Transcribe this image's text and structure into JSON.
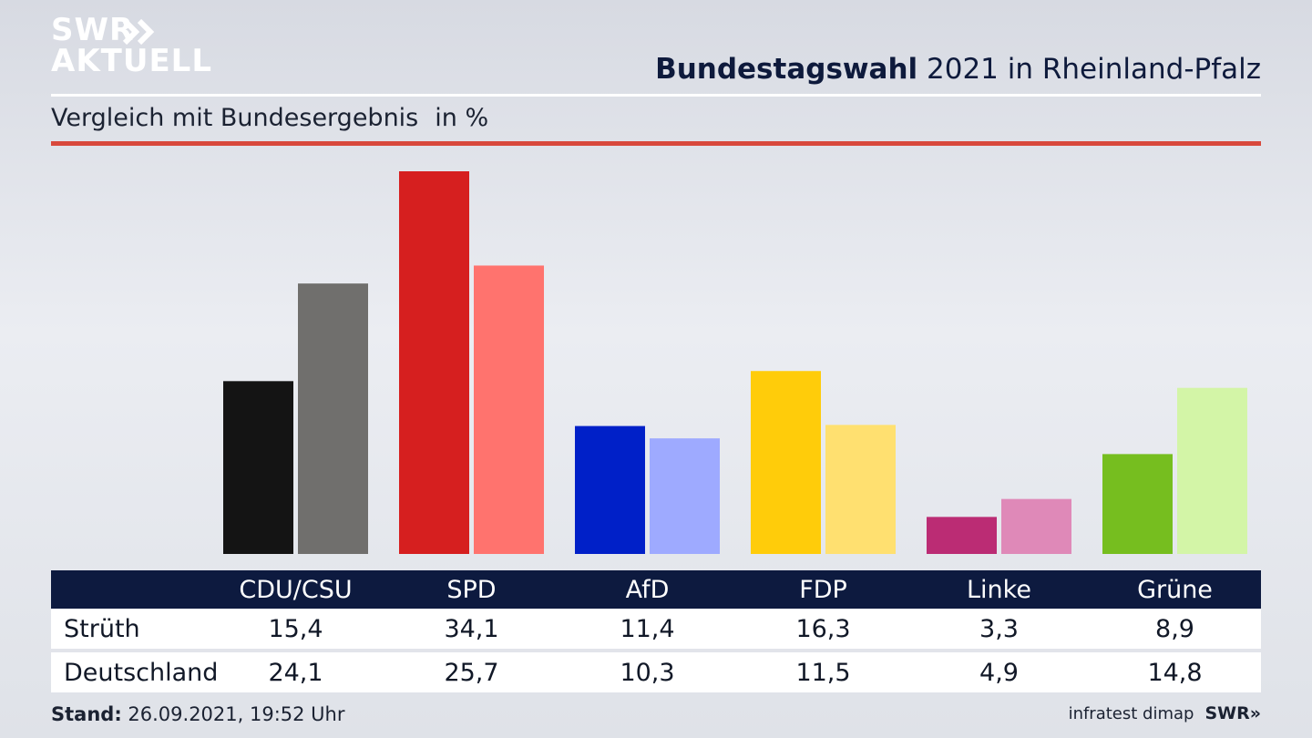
{
  "logo": {
    "line1": "SWR",
    "line2": "AKTUELL"
  },
  "header": {
    "title_bold": "Bundestagswahl",
    "title_rest": " 2021 in Rheinland-Pfalz",
    "subtitle": "Vergleich mit Bundesergebnis",
    "unit": "in %"
  },
  "chart_data": {
    "type": "bar",
    "categories": [
      "CDU/CSU",
      "SPD",
      "AfD",
      "FDP",
      "Linke",
      "Grüne"
    ],
    "series": [
      {
        "name": "Strüth",
        "values": [
          15.4,
          34.1,
          11.4,
          16.3,
          3.3,
          8.9
        ],
        "colors": [
          "#141414",
          "#d61f1f",
          "#0020c8",
          "#ffcc0a",
          "#bb2c74",
          "#76be1f"
        ]
      },
      {
        "name": "Deutschland",
        "values": [
          24.1,
          25.7,
          10.3,
          11.5,
          4.9,
          14.8
        ],
        "colors": [
          "#706f6d",
          "#ff736e",
          "#9eaaff",
          "#ffe070",
          "#df89b8",
          "#d3f5a7"
        ]
      }
    ],
    "ylim": [
      0,
      35
    ],
    "grid": false,
    "title": "Bundestagswahl 2021 in Rheinland-Pfalz",
    "xlabel": "",
    "ylabel": ""
  },
  "footer": {
    "stand_label": "Stand:",
    "stand_value": " 26.09.2021, 19:52 Uhr",
    "source": "infratest dimap",
    "brand": "SWR»"
  }
}
